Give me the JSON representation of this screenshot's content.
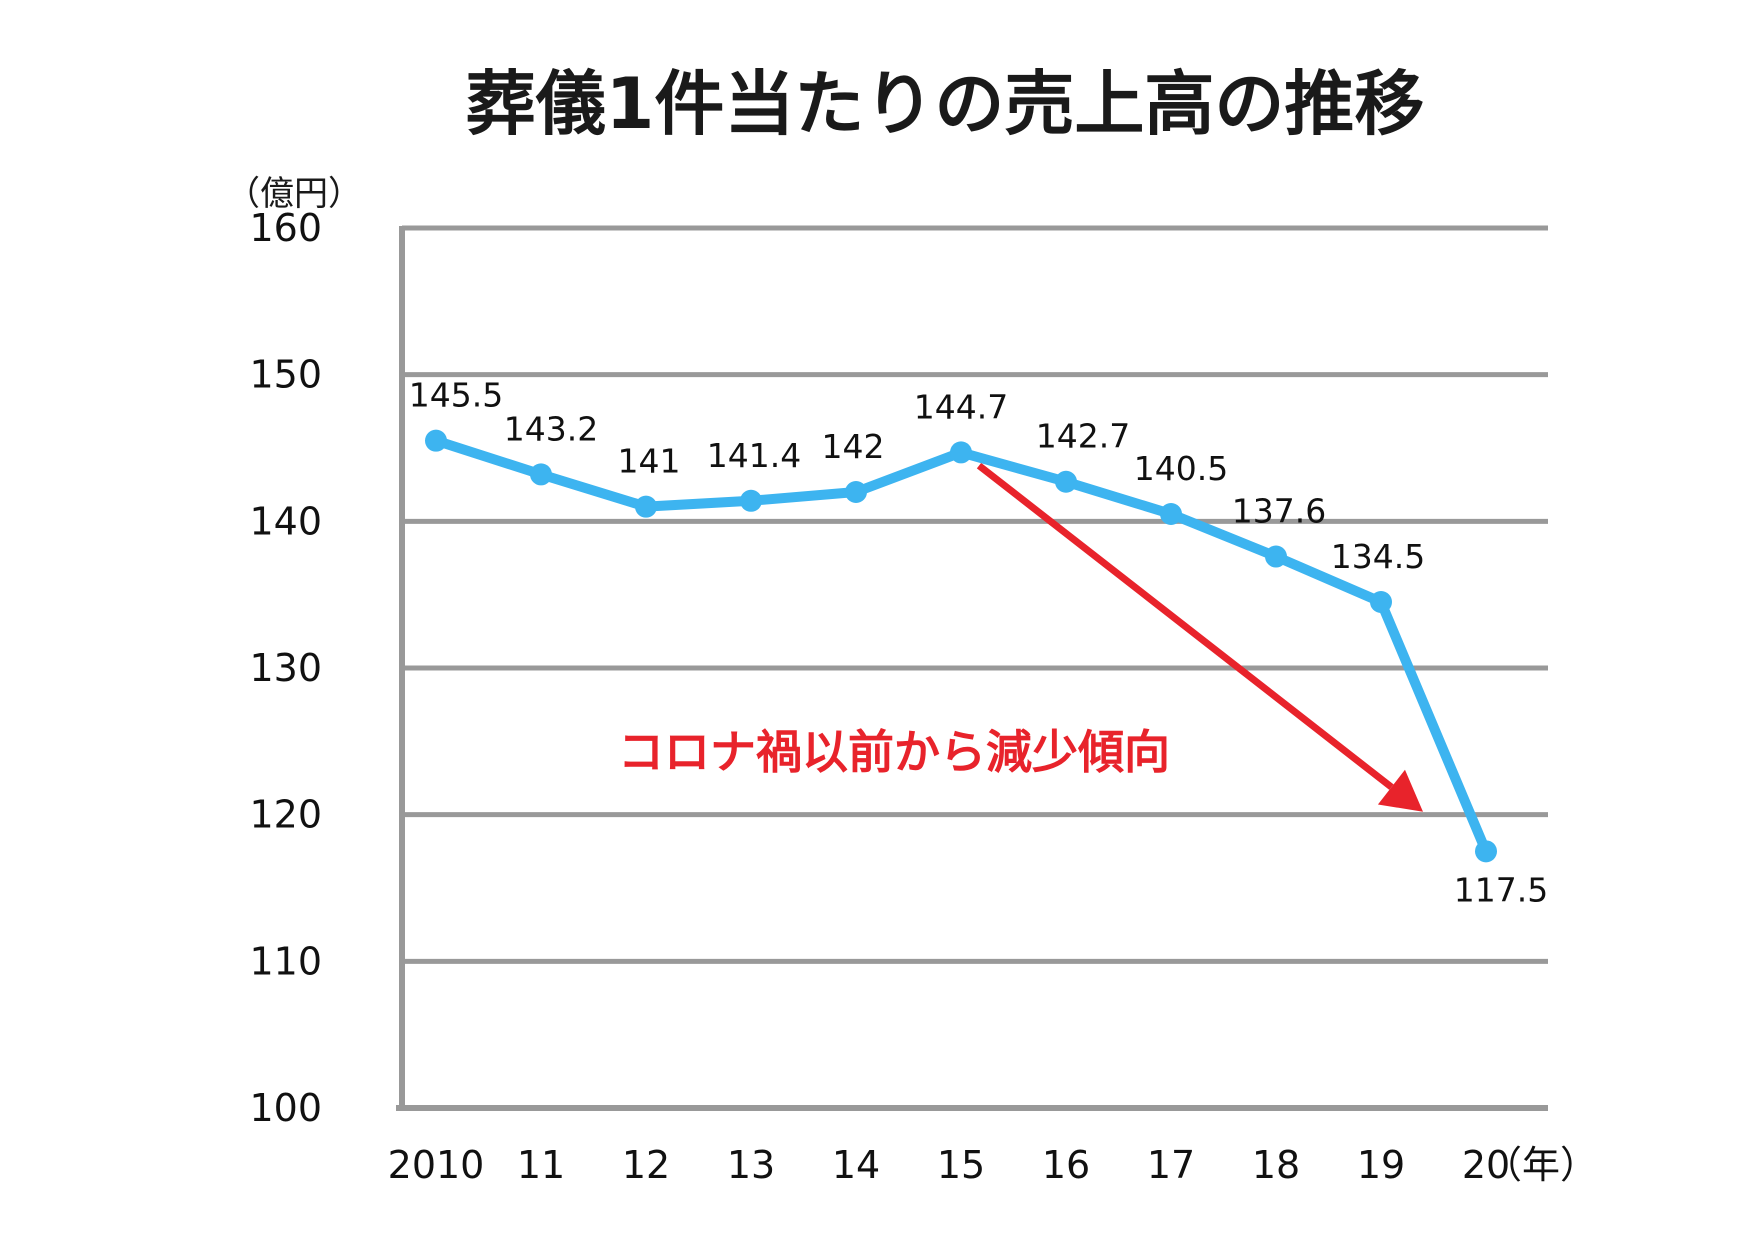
{
  "chart_data": {
    "type": "line",
    "title": "葬儀1件当たりの売上高の推移",
    "ylabel": "（億円）",
    "xlabel": "（年）",
    "ylim": [
      100,
      160
    ],
    "yticks": [
      "100",
      "110",
      "120",
      "130",
      "140",
      "150",
      "160"
    ],
    "categories": [
      "2010",
      "11",
      "12",
      "13",
      "14",
      "15",
      "16",
      "17",
      "18",
      "19",
      "20"
    ],
    "series": [
      {
        "values": [
          145.5,
          143.2,
          141,
          141.4,
          142,
          144.7,
          142.7,
          140.5,
          137.6,
          134.5,
          117.5
        ],
        "labels": [
          "145.5",
          "143.2",
          "141",
          "141.4",
          "142",
          "144.7",
          "142.7",
          "140.5",
          "137.6",
          "134.5",
          "117.5"
        ],
        "color": "#3db4f0"
      }
    ],
    "grid": true,
    "gridline_color": "#999999",
    "annotation": {
      "text": "コロナ禍以前から減少傾向",
      "color": "#e8232b",
      "arrow_from": [
        "15",
        143.8
      ],
      "arrow_to": [
        "19",
        120.2
      ]
    }
  }
}
